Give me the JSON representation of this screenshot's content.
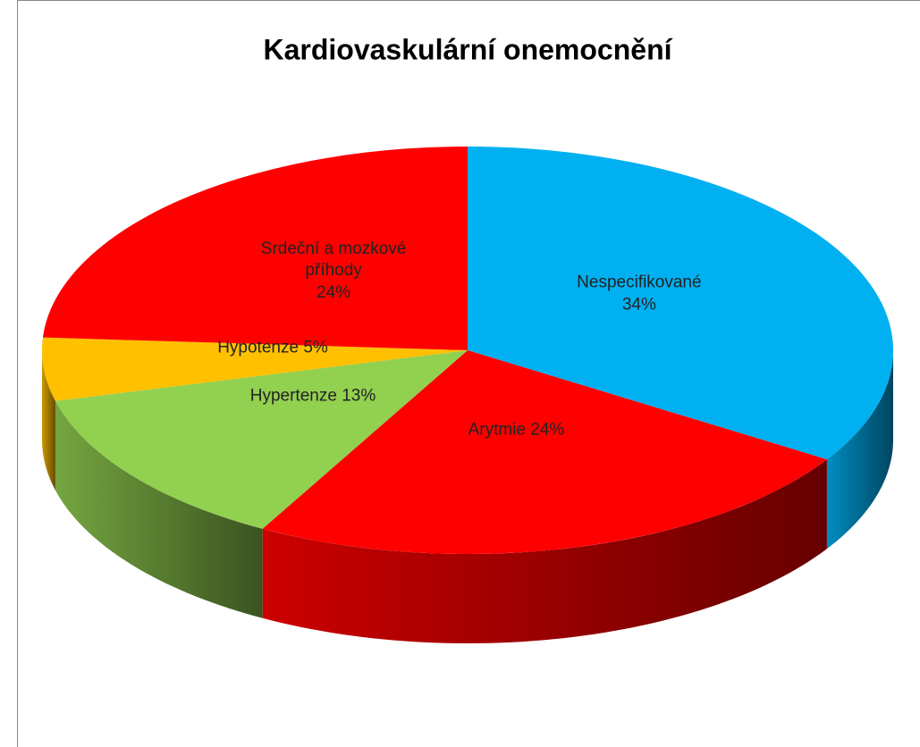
{
  "chart_data": {
    "type": "pie",
    "title": "Kardiovaskulární onemocnění",
    "categories": [
      "Nespecifikované",
      "Arytmie",
      "Hypertenze",
      "Hypotenze",
      "Srdeční a mozkové příhody"
    ],
    "values": [
      34,
      24,
      13,
      5,
      24
    ],
    "value_labels": [
      "34%",
      "24%",
      "13%",
      "5%",
      "24%"
    ],
    "colors": [
      "#00b0f0",
      "#ff0000",
      "#92d050",
      "#ffc000",
      "#ff0000"
    ]
  }
}
